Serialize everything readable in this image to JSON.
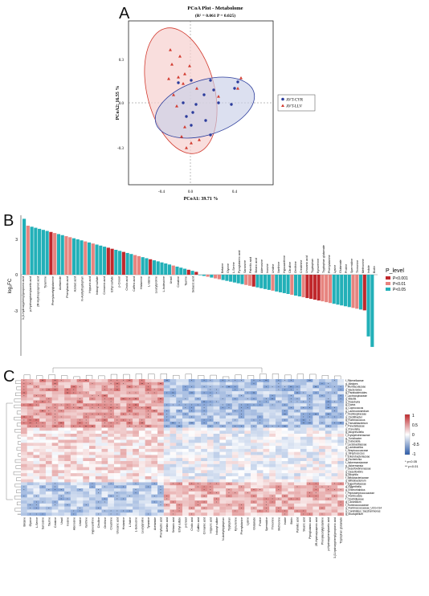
{
  "panels": {
    "a": {
      "letter": "A"
    },
    "b": {
      "letter": "B"
    },
    "c": {
      "letter": "C"
    }
  },
  "pcoa": {
    "title": "PCoA Plot - Metabolome",
    "stats": "(R² = 0.061    P = 0.025)",
    "xlabel": "PCoA1: 39.71 %",
    "ylabel": "PCoA2: 16.55 %",
    "x_ticks": [
      "-0.4",
      "0.0",
      "0.4"
    ],
    "y_ticks": [
      "0.3",
      "0.0",
      "-0.3"
    ],
    "legend": [
      {
        "label": "AVT-CYR",
        "color": "#2b3c9c",
        "marker": "circle"
      },
      {
        "label": "AVT-LLV",
        "color": "#d23b2f",
        "marker": "triangle"
      }
    ],
    "colors": {
      "blue_fill": "#c9cfe8",
      "red_fill": "#f6d0cf",
      "red_line": "#d23b2f",
      "blue_line": "#2b3c9c"
    }
  },
  "bar": {
    "ylabel": "log₂FC",
    "y_ticks": [
      "3",
      "0",
      "-3"
    ],
    "legend_title": "P_level",
    "legend": [
      {
        "label": "P<0.001",
        "color": "#c0282c"
      },
      {
        "label": "P<0.01",
        "color": "#e7847f"
      },
      {
        "label": "P<0.05",
        "color": "#22b0b8"
      }
    ],
    "labels_left": [
      "3-(3-hydroxyphenyl)propionic acid",
      "p-Hydroxyphenylacetic acid",
      "2R-Hydroxycaproic acid",
      "Tyramine",
      "Phenylacetylglutamine",
      "Acetamide",
      "Phenyllactic acid",
      "Azelaic acid",
      "N-Acetyltryptophan",
      "Hippuric acid",
      "Indoxyl sulfate",
      "Cinnamic acid",
      "Ethyl sulfate",
      "p-Cresol",
      "Cholic acid",
      "Caffeic acid",
      "Histamine",
      "L-Valine",
      "Leucylproline",
      "L-Isoleucine",
      "Uracil",
      "Creatine",
      "Taurine",
      "Sebacic acid"
    ],
    "labels_right": [
      "Betaine",
      "Glycine",
      "L-Serine",
      "Pyroglutamic acid",
      "Sarcosine",
      "Palmitic acid",
      "Stearic acid",
      "Adenosine",
      "Inosine",
      "Uridine",
      "Xanthine",
      "Hypoxanthine",
      "Citrulline",
      "Ornithine",
      "Creatinine",
      "Urocanic acid",
      "Tryptophan",
      "Kynurenine",
      "Tryptophan glutamate",
      "Phenylalanine",
      "Lysine",
      "Glutamate",
      "Proline",
      "Spermidine",
      "Threonine",
      "Methionine",
      "Indole",
      "Biotin"
    ]
  },
  "heatmap": {
    "legend_ticks": [
      "1",
      "0.5",
      "0",
      "-0.5",
      "-1"
    ],
    "sig_note_1": "* p<0.05",
    "sig_note_2": "** p<0.01",
    "row_labels": [
      "f_Rikenellaceae",
      "g_Alistipes",
      "f_Muribaculaceae",
      "g_Bacteroides",
      "g_Parabacteroides",
      "f_Lachnospiraceae",
      "g_Blautia",
      "g_Roseburia",
      "g_Dorea",
      "g_Coprococcus",
      "g_Lachnoclostridium",
      "f_Oscillospiraceae",
      "g_Oscillibacter",
      "g_Ruminococcus",
      "g_Faecalibacterium",
      "f_Prevotellaceae",
      "g_Prevotella",
      "g_Alloprevotella",
      "f_Erysipelotrichaceae",
      "g_Turicibacter",
      "g_Dubosiella",
      "f_Lactobacillaceae",
      "g_Lactobacillus",
      "f_Streptococcaceae",
      "g_Streptococcus",
      "f_Enterobacteriaceae",
      "g_Escherichia",
      "f_Akkermansiaceae",
      "g_Akkermansia",
      "f_Desulfovibrionaceae",
      "g_Desulfovibrio",
      "g_Bilophila",
      "f_Bifidobacteriaceae",
      "g_Bifidobacterium",
      "f_Eggerthellaceae",
      "g_Eggerthella",
      "g_Enterorhabdus",
      "f_Peptostreptococcaceae",
      "g_Romboutsia",
      "f_Clostridiaceae",
      "g_Clostridium",
      "f_Ruminococcaceae",
      "g_Ruminococcaceae_UCG-014",
      "g_Candidatus_Saccharimonas",
      "g_Mucispirillum"
    ],
    "col_labels": [
      "Betaine",
      "Glycine",
      "L-Serine",
      "Sarcosine",
      "Taurine",
      "Creatine",
      "Uracil",
      "Inosine",
      "Adenosine",
      "Uridine",
      "Xanthine",
      "Hypoxanthine",
      "Citrulline",
      "Ornithine",
      "Creatinine",
      "Urocanic acid",
      "Histamine",
      "L-Valine",
      "L-Isoleucine",
      "Leucylproline",
      "Tyramine",
      "Acetamide",
      "Phenyllactic acid",
      "Azelaic acid",
      "Sebacic acid",
      "Ethyl sulfate",
      "p-Cresol",
      "Cholic acid",
      "Caffeic acid",
      "Cinnamic acid",
      "Hippuric acid",
      "Indoxyl sulfate",
      "N-Acetyltryptophan",
      "Tryptophan",
      "Kynurenine",
      "Phenylalanine",
      "Lysine",
      "Glutamate",
      "Proline",
      "Spermidine",
      "Threonine",
      "Methionine",
      "Indole",
      "Biotin",
      "Palmitic acid",
      "Stearic acid",
      "Pyroglutamic acid",
      "2R-Hydroxycaproic acid",
      "Phenylacetylglutamine",
      "p-Hydroxyphenylacetic acid",
      "3-(3-hydroxyphenyl)propionic acid",
      "Tryptophan glutamate"
    ]
  }
}
